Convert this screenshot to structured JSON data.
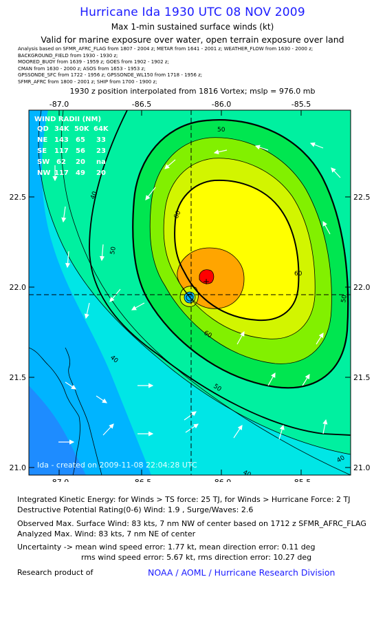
{
  "header": {
    "title": "Hurricane Ida 1930 UTC 08 NOV 2009",
    "subtitle": "Max 1-min sustained surface winds (kt)",
    "validity": "Valid for marine exposure over water, open terrain exposure over land",
    "analysis_lines": [
      "Analysis based on  SFMR_AFRC_FLAG from 1807 - 2004 z;   METAR from 1641 - 2001 z;   WEATHER_FLOW from 1630 - 2000 z;",
      "BACKGROUND_FIELD from 1930 - 1930 z;",
      "MOORED_BUOY from 1639 - 1959 z;  GOES from 1902 - 1902 z;",
      "CMAN from 1630 - 2000 z;  ASOS from 1653 - 1953 z;",
      "GPSSONDE_SFC from 1722 - 1956 z;  GPSSONDE_WL150 from 1718 - 1956 z;",
      "SFMR_AFRC from 1800 - 2001 z;  SHIP from 1700 - 1900 z;"
    ],
    "position_line": "1930 z position interpolated from 1816 Vortex; mslp = 976.0 mb"
  },
  "map": {
    "lon_ticks": [
      "-87.0",
      "-86.5",
      "-86.0",
      "-85.5"
    ],
    "lat_ticks": [
      "22.5",
      "22.0",
      "21.5",
      "21.0"
    ],
    "contour_labels": [
      "50",
      "40",
      "50",
      "60",
      "60",
      "40",
      "60",
      "50",
      "40",
      "50",
      "40"
    ],
    "watermark": "Ida - created on 2009-11-08 22:04:28 UTC",
    "wind_radii": {
      "title": "WIND RADII (NM)",
      "header": [
        "QD",
        "34K",
        "50K",
        "64K"
      ],
      "rows": [
        [
          "NE",
          "143",
          "65",
          "33"
        ],
        [
          "SE",
          "117",
          "56",
          "23"
        ],
        [
          "SW",
          "62",
          "20",
          "na"
        ],
        [
          "NW",
          "117",
          "49",
          "20"
        ]
      ]
    },
    "colors": {
      "lt20": "#1e8cff",
      "20_30": "#00b4ff",
      "30_40": "#00e6e6",
      "40_50": "#00f0a0",
      "50_55": "#00e650",
      "55_64": "#82f000",
      "64_73": "#d2f500",
      "73_83": "#ffff00",
      "83_96": "#ffa500",
      "96plus": "#ff0000"
    }
  },
  "info": {
    "ike": "Integrated Kinetic Energy:  for Winds > TS force: 25 TJ,  for Winds > Hurricane Force: 2 TJ",
    "dp": "Destructive Potential Rating(0-6)   Wind: 1.9 , Surge/Waves: 2.6",
    "obs": "Observed Max. Surface Wind: 83 kts, 7 nm NW of center based on 1712 z SFMR_AFRC_FLAG",
    "analyzed": "Analyzed Max. Wind: 83 kts, 7 nm NE of center",
    "unc1": "Uncertainty -> mean wind speed error: 1.77 kt,   mean direction error: 0.11 deg",
    "unc2": "rms wind speed error: 5.67 kt,   rms direction error: 10.27 deg",
    "research": "Research product of",
    "org": "NOAA / AOML / Hurricane Research Division"
  }
}
